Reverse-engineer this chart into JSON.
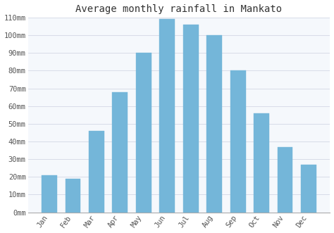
{
  "title": "Average monthly rainfall in Mankato",
  "months": [
    "Jan",
    "Feb",
    "Mar",
    "Apr",
    "May",
    "Jun",
    "Jul",
    "Aug",
    "Sep",
    "Oct",
    "Nov",
    "Dec"
  ],
  "values": [
    21,
    19,
    46,
    68,
    90,
    109,
    106,
    100,
    80,
    56,
    37,
    27
  ],
  "bar_color": "#74b6d9",
  "bar_edge_color": "#74b6d9",
  "background_color": "#ffffff",
  "plot_bg_color": "#f5f8fc",
  "grid_color": "#d8dce8",
  "ylim": [
    0,
    110
  ],
  "yticks": [
    0,
    10,
    20,
    30,
    40,
    50,
    60,
    70,
    80,
    90,
    100,
    110
  ],
  "ylabel_suffix": "mm",
  "title_fontsize": 10,
  "tick_fontsize": 7.5
}
